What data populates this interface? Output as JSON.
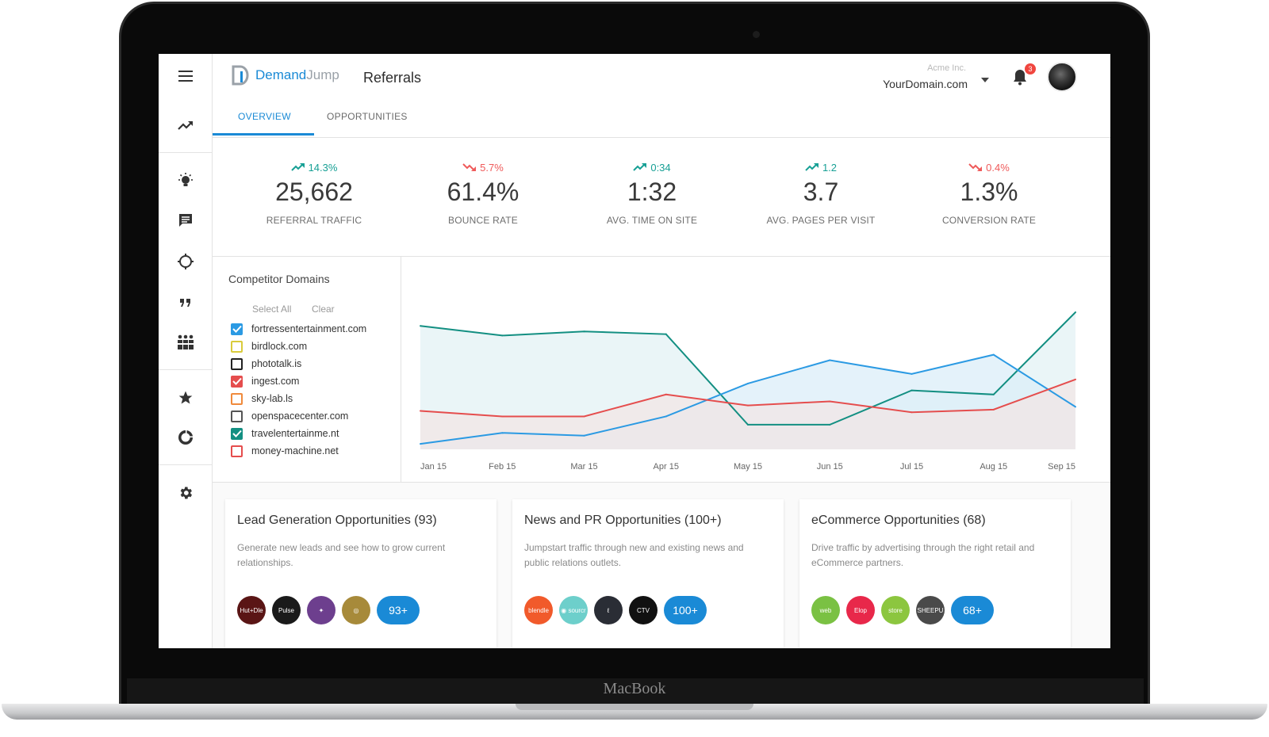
{
  "device": {
    "brand_label": "MacBook"
  },
  "app": {
    "logo_text_primary": "Demand",
    "logo_text_secondary": "Jump",
    "page_title": "Referrals",
    "account": {
      "name": "Acme Inc.",
      "domain": "YourDomain.com"
    },
    "notifications_count": "3",
    "tabs": [
      {
        "label": "OVERVIEW"
      },
      {
        "label": "OPPORTUNITIES"
      }
    ]
  },
  "sidebar": {
    "icons": [
      "menu-icon",
      "trending-icon",
      "lightbulb-icon",
      "message-icon",
      "crosshair-icon",
      "quote-icon",
      "groups-icon",
      "star-icon",
      "donut-chart-icon",
      "settings-icon"
    ]
  },
  "metrics": [
    {
      "delta": "14.3%",
      "trend": "up",
      "value": "25,662",
      "label": "REFERRAL TRAFFIC"
    },
    {
      "delta": "5.7%",
      "trend": "down",
      "value": "61.4%",
      "label": "BOUNCE RATE"
    },
    {
      "delta": "0:34",
      "trend": "up",
      "value": "1:32",
      "label": "AVG. TIME ON SITE"
    },
    {
      "delta": "1.2",
      "trend": "up",
      "value": "3.7",
      "label": "AVG. PAGES PER VISIT"
    },
    {
      "delta": "0.4%",
      "trend": "down",
      "value": "1.3%",
      "label": "CONVERSION RATE"
    }
  ],
  "competitors": {
    "title": "Competitor Domains",
    "select_all": "Select All",
    "clear": "Clear",
    "domains": [
      {
        "name": "fortressentertainment.com",
        "checked": true,
        "color": "#2b9ae3"
      },
      {
        "name": "birdlock.com",
        "checked": false,
        "color": "#d9cb3c"
      },
      {
        "name": "phototalk.is",
        "checked": false,
        "color": "#222222"
      },
      {
        "name": "ingest.com",
        "checked": true,
        "color": "#e54d4d"
      },
      {
        "name": "sky-lab.ls",
        "checked": false,
        "color": "#f08a3c"
      },
      {
        "name": "openspacecenter.com",
        "checked": false,
        "color": "#555555"
      },
      {
        "name": "travelentertainme.nt",
        "checked": true,
        "color": "#138f82"
      },
      {
        "name": "money-machine.net",
        "checked": false,
        "color": "#e54d4d"
      }
    ]
  },
  "chart_data": {
    "type": "area",
    "categories": [
      "Jan 15",
      "Feb 15",
      "Mar 15",
      "Apr 15",
      "May 15",
      "Jun 15",
      "Jul 15",
      "Aug 15",
      "Sep 15"
    ],
    "ylim": [
      0,
      100
    ],
    "grid": false,
    "series": [
      {
        "name": "travelentertainme.nt",
        "color": "#138f82",
        "fill": "#e3f1f4",
        "values": [
          90,
          83,
          86,
          84,
          18,
          18,
          43,
          40,
          100
        ]
      },
      {
        "name": "fortressentertainment.com",
        "color": "#2b9ae3",
        "fill": "#dbeef8",
        "values": [
          4,
          12,
          10,
          24,
          48,
          65,
          55,
          69,
          31
        ]
      },
      {
        "name": "ingest.com",
        "color": "#e54d4d",
        "fill": "#f1e5e6",
        "values": [
          28,
          24,
          24,
          40,
          32,
          35,
          27,
          29,
          51
        ]
      }
    ]
  },
  "cards": [
    {
      "title": "Lead Generation Opportunities (93)",
      "description": "Generate new leads and see how to grow current relationships.",
      "logos": [
        {
          "label": "Hut+Dle",
          "color": "#5a1515"
        },
        {
          "label": "Pulse",
          "color": "#1a1a1a"
        },
        {
          "label": "✦",
          "color": "#6d3f8e"
        },
        {
          "label": "◎",
          "color": "#a78a3a"
        }
      ],
      "more": "93+"
    },
    {
      "title": "News and PR Opportunities (100+)",
      "description": "Jumpstart traffic through new and existing news and public relations outlets.",
      "logos": [
        {
          "label": "blendle",
          "color": "#f15a2b"
        },
        {
          "label": "◉ sourcr",
          "color": "#6dcfcb"
        },
        {
          "label": "ℓ",
          "color": "#2a2d35"
        },
        {
          "label": "CTV",
          "color": "#111111"
        }
      ],
      "more": "100+"
    },
    {
      "title": "eCommerce Opportunities (68)",
      "description": "Drive traffic by advertising through the right retail and eCommerce partners.",
      "logos": [
        {
          "label": "web",
          "color": "#7ac143"
        },
        {
          "label": "Elop",
          "color": "#e8284a"
        },
        {
          "label": "store",
          "color": "#8cc63f"
        },
        {
          "label": "SHEEPU",
          "color": "#4a4a4a"
        }
      ],
      "more": "68+"
    }
  ]
}
